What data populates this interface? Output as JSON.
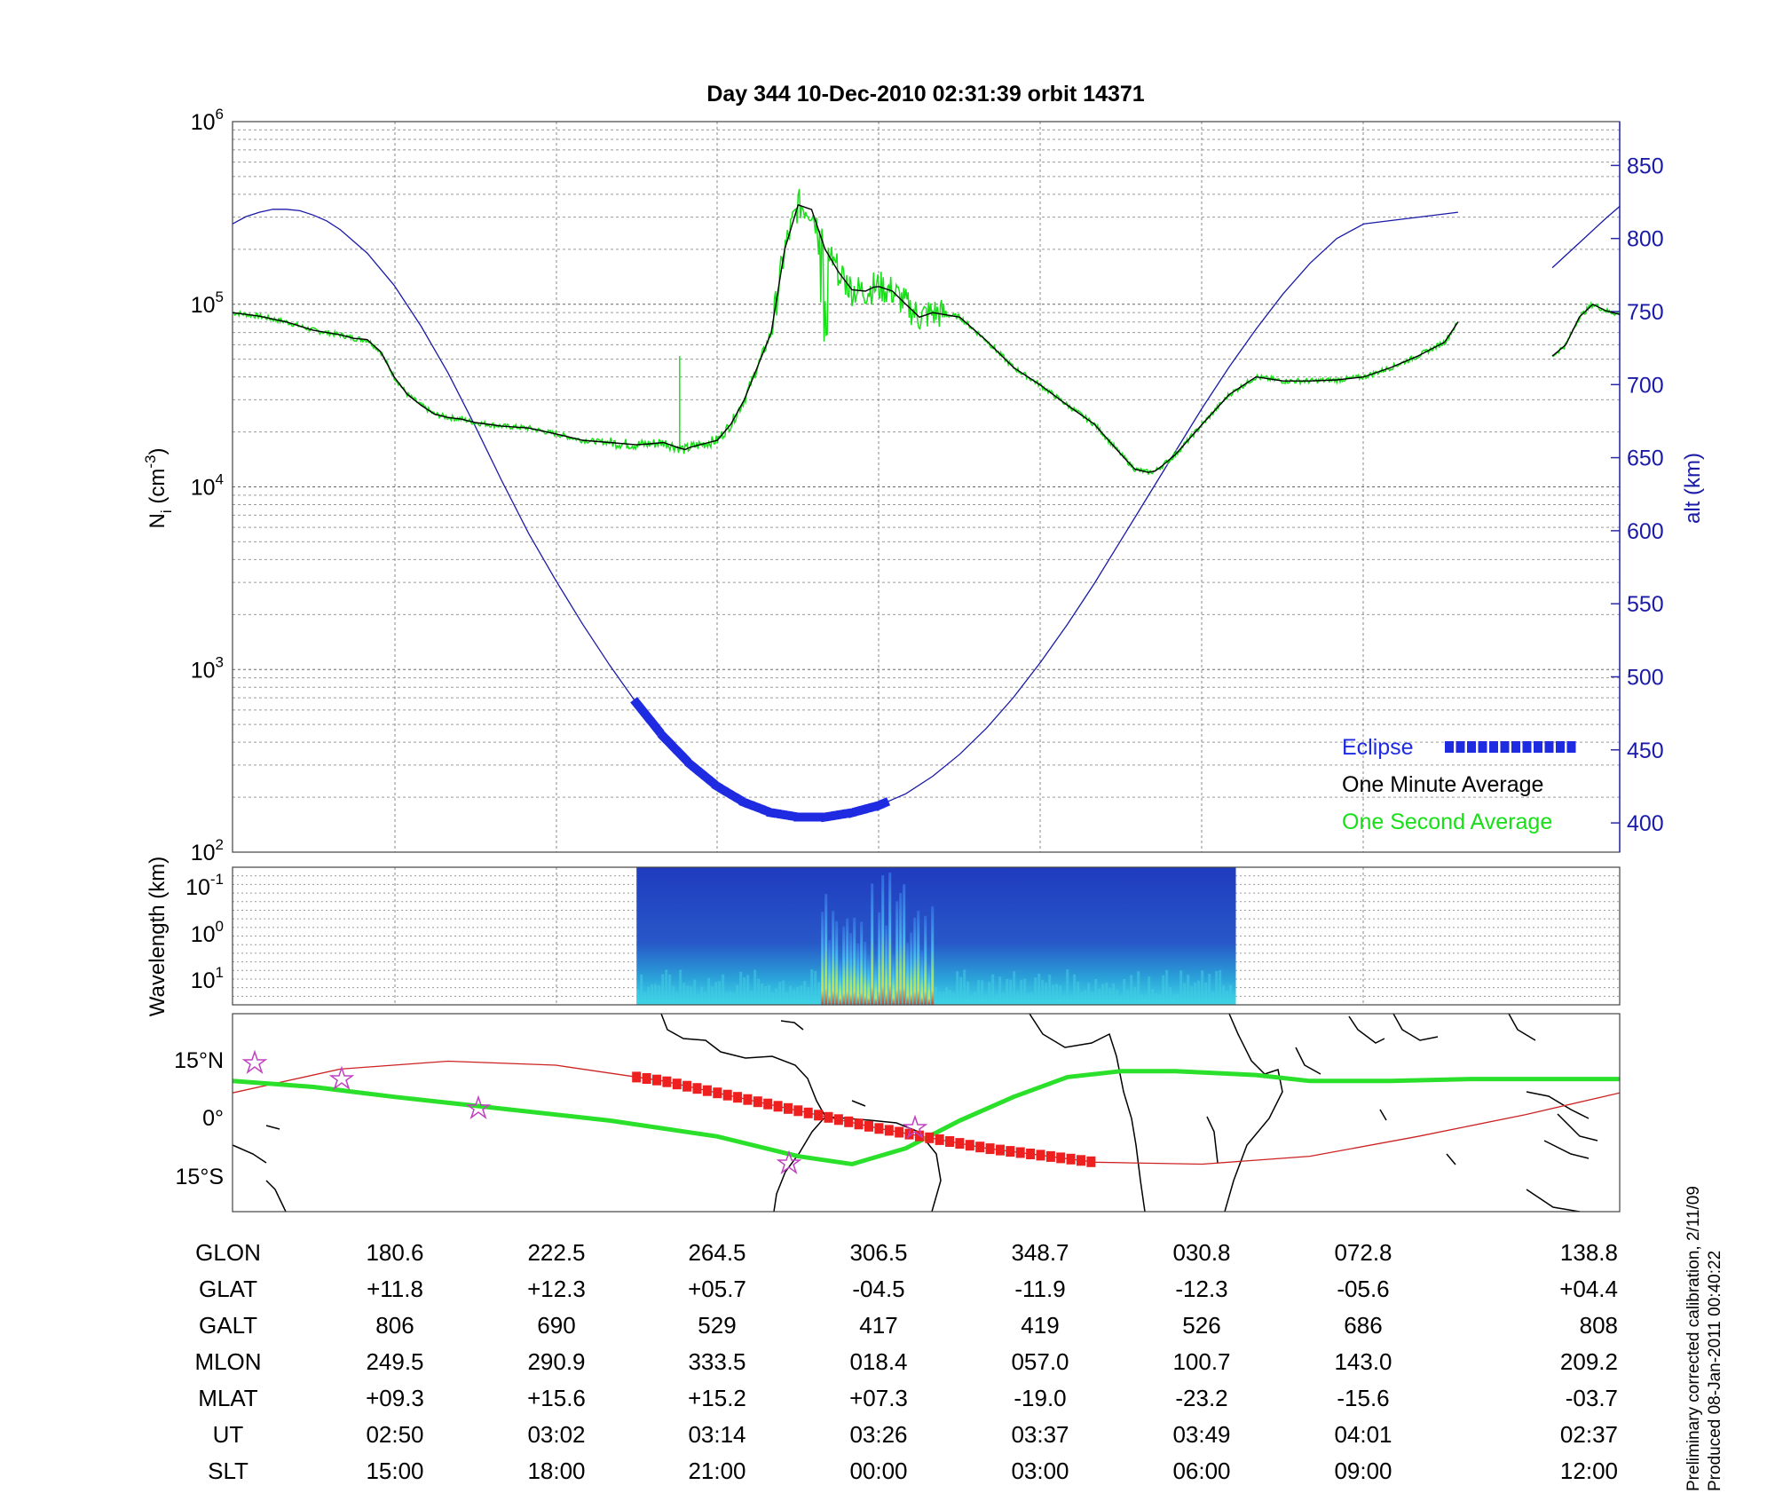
{
  "title": "Day 344  10-Dec-2010 02:31:39   orbit 14371",
  "colors": {
    "altitude": "#1a1aa8",
    "eclipse": "#1f2be0",
    "one_minute": "#000000",
    "one_second": "#18e018",
    "track": "#cc2222",
    "eclipse_track": "#ee1f1f",
    "magnetic_equator": "#2be02b"
  },
  "chart_data": [
    {
      "type": "line",
      "name": "ion-density",
      "ylabel_left": "N_i (cm^-3)",
      "ylabel_right": "alt (km)",
      "yscale_left": "log",
      "ylim_left": [
        100,
        1000000
      ],
      "yticks_left": [
        {
          "base": "10",
          "exp": "2"
        },
        {
          "base": "10",
          "exp": "3"
        },
        {
          "base": "10",
          "exp": "4"
        },
        {
          "base": "10",
          "exp": "5"
        },
        {
          "base": "10",
          "exp": "6"
        }
      ],
      "ylim_right": [
        380,
        880
      ],
      "yticks_right": [
        "400",
        "450",
        "500",
        "550",
        "600",
        "650",
        "700",
        "750",
        "800",
        "850"
      ],
      "xlim_minutes": [
        0,
        103
      ],
      "grid": true,
      "legend_placement": "bottom-right",
      "legend": [
        {
          "label": "Eclipse",
          "series": "eclipse"
        },
        {
          "label": "One Minute Average",
          "series": "one_minute"
        },
        {
          "label": "One Second Average",
          "series": "one_second"
        }
      ],
      "series": [
        {
          "key": "one_minute",
          "name": "One Minute Average",
          "x": [
            0,
            2,
            4,
            6,
            8,
            9,
            10,
            11,
            12,
            13,
            14,
            15,
            16,
            17,
            18,
            19,
            20,
            22,
            24,
            26,
            28,
            30,
            31,
            32,
            33,
            33.6,
            34,
            36,
            37,
            38,
            40,
            41,
            42,
            43,
            44,
            45,
            46,
            47,
            47.6,
            48,
            49,
            50,
            51,
            52,
            54,
            56,
            58,
            60,
            62,
            64,
            66,
            67,
            68,
            68.5,
            69,
            70,
            72,
            74,
            76,
            78,
            80,
            82,
            84,
            86,
            88,
            90,
            91
          ],
          "y": [
            90000,
            86000,
            80000,
            72000,
            68000,
            65000,
            64000,
            55000,
            40000,
            32000,
            28000,
            25000,
            24000,
            23500,
            22500,
            22000,
            21500,
            21000,
            19500,
            18000,
            17500,
            17000,
            17200,
            17500,
            16500,
            16000,
            16500,
            18000,
            22000,
            30000,
            70000,
            200000,
            350000,
            330000,
            200000,
            150000,
            120000,
            118000,
            124000,
            125000,
            118000,
            100000,
            85000,
            90000,
            85000,
            63000,
            45000,
            36000,
            28000,
            22000,
            15000,
            12500,
            12000,
            12200,
            13000,
            15000,
            22000,
            32000,
            40000,
            38000,
            38000,
            38500,
            40000,
            45000,
            52000,
            62000,
            80000
          ]
        },
        {
          "key": "one_minute_b",
          "name": "One Minute Average",
          "x": [
            98,
            99,
            100,
            101,
            102,
            103
          ],
          "y": [
            52000,
            60000,
            85000,
            100000,
            92000,
            88000
          ]
        },
        {
          "key": "altitude",
          "name": "alt (km)",
          "axis": "right",
          "x": [
            0,
            1,
            2,
            3,
            4,
            5,
            6,
            7,
            8,
            10,
            12,
            14,
            16,
            18,
            20,
            22,
            24,
            26,
            28,
            30,
            32,
            34,
            36,
            38,
            40,
            42,
            44,
            46,
            48,
            50,
            52,
            54,
            56,
            58,
            60,
            62,
            64,
            66,
            68,
            70,
            72,
            74,
            76,
            78,
            80,
            82,
            84,
            91
          ],
          "y": [
            810,
            815,
            818,
            820,
            820,
            819,
            816,
            812,
            806,
            790,
            768,
            740,
            708,
            672,
            634,
            598,
            566,
            536,
            508,
            482,
            459,
            440,
            425,
            414,
            407,
            404,
            404,
            407,
            412,
            420,
            432,
            447,
            465,
            486,
            510,
            536,
            564,
            594,
            624,
            654,
            684,
            712,
            738,
            762,
            783,
            800,
            810,
            818
          ]
        },
        {
          "key": "altitude_b",
          "name": "alt (km)",
          "axis": "right",
          "x": [
            98,
            100,
            102,
            103
          ],
          "y": [
            780,
            797,
            814,
            822
          ]
        }
      ],
      "eclipse_range_minutes": [
        30,
        48.5
      ]
    },
    {
      "type": "heatmap",
      "name": "wavelength-spectrogram",
      "ylabel": "Wavelength (km)",
      "yticks": [
        {
          "base": "10",
          "exp": "-1"
        },
        {
          "base": "10",
          "exp": "0"
        },
        {
          "base": "10",
          "exp": "1"
        }
      ],
      "x_range_minutes": [
        30,
        74.5
      ],
      "peak_range_minutes": [
        43.5,
        52
      ]
    },
    {
      "type": "line",
      "name": "ground-track",
      "yticks": [
        "15°N",
        "0°",
        "15°S"
      ],
      "ylim_deg": [
        -25,
        25
      ],
      "series": [
        {
          "key": "orbit_track",
          "name": "",
          "x": [
            0,
            8,
            16,
            24,
            32,
            40,
            48,
            56,
            64,
            72,
            80,
            88,
            96,
            103
          ],
          "y": [
            5,
            11,
            13,
            12,
            8,
            2,
            -4,
            -9,
            -12.5,
            -13,
            -11,
            -6,
            -0.5,
            5
          ]
        },
        {
          "key": "magnetic_equator",
          "name": "",
          "x": [
            0,
            6,
            12,
            20,
            28,
            36,
            42,
            46,
            50,
            54,
            58,
            62,
            66,
            70,
            76,
            80,
            86,
            92,
            103
          ],
          "y": [
            8,
            6.5,
            4,
            1,
            -2,
            -6,
            -11,
            -13,
            -9,
            -2,
            4,
            9,
            10.5,
            10.5,
            9.5,
            8,
            8,
            8.5,
            8.5
          ]
        }
      ],
      "eclipse_range_minutes": [
        30,
        64
      ]
    }
  ],
  "table": {
    "rows": [
      {
        "label": "GLON",
        "values": [
          "180.6",
          "222.5",
          "264.5",
          "306.5",
          "348.7",
          "030.8",
          "072.8",
          "138.8"
        ]
      },
      {
        "label": "GLAT",
        "values": [
          "+11.8",
          "+12.3",
          "+05.7",
          "-04.5",
          "-11.9",
          "-12.3",
          "-05.6",
          "+04.4"
        ]
      },
      {
        "label": "GALT",
        "values": [
          "806",
          "690",
          "529",
          "417",
          "419",
          "526",
          "686",
          "808"
        ]
      },
      {
        "label": "MLON",
        "values": [
          "249.5",
          "290.9",
          "333.5",
          "018.4",
          "057.0",
          "100.7",
          "143.0",
          "209.2"
        ]
      },
      {
        "label": "MLAT",
        "values": [
          "+09.3",
          "+15.6",
          "+15.2",
          "+07.3",
          "-19.0",
          "-23.2",
          "-15.6",
          "-03.7"
        ]
      },
      {
        "label": "UT",
        "values": [
          "02:50",
          "03:02",
          "03:14",
          "03:26",
          "03:37",
          "03:49",
          "04:01",
          "02:37"
        ]
      },
      {
        "label": "SLT",
        "values": [
          "15:00",
          "18:00",
          "21:00",
          "00:00",
          "03:00",
          "06:00",
          "09:00",
          "12:00"
        ]
      }
    ]
  },
  "side_note": [
    "Preliminary corrected calibration, 2/11/09",
    "Produced 08-Jan-2011 00:40:22"
  ]
}
